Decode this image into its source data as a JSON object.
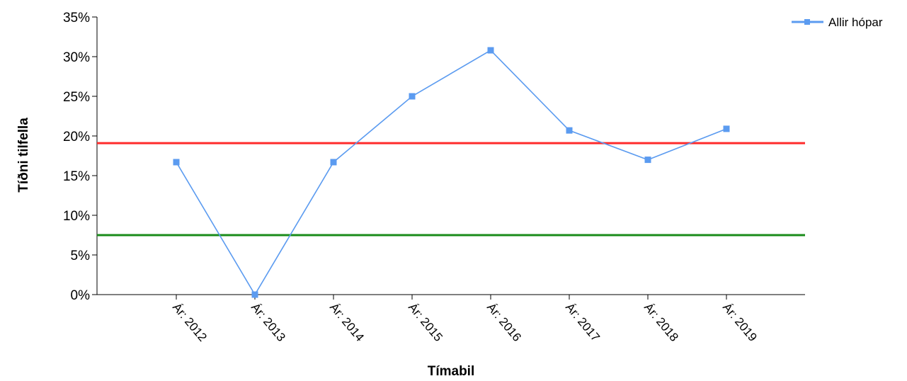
{
  "chart_data": {
    "type": "line",
    "xlabel": "Tímabil",
    "ylabel": "Tíðni tilfella",
    "ylim": [
      0,
      35
    ],
    "y_ticks": [
      0,
      5,
      10,
      15,
      20,
      25,
      30,
      35
    ],
    "y_tick_suffix": "%",
    "categories": [
      "Ár: 2012",
      "Ár: 2013",
      "Ár: 2014",
      "Ár: 2015",
      "Ár: 2016",
      "Ár: 2017",
      "Ár: 2018",
      "Ár: 2019"
    ],
    "series": [
      {
        "name": "Allir hópar",
        "color": "#5b9bf0",
        "marker": "square",
        "values": [
          16.7,
          0,
          16.7,
          25.0,
          30.8,
          20.7,
          17.0,
          20.9
        ]
      }
    ],
    "reference_lines": [
      {
        "value": 19.1,
        "color": "#ff2b2b"
      },
      {
        "value": 7.5,
        "color": "#1a8c1a"
      }
    ],
    "legend": {
      "position": "top-right"
    },
    "grid": false
  }
}
